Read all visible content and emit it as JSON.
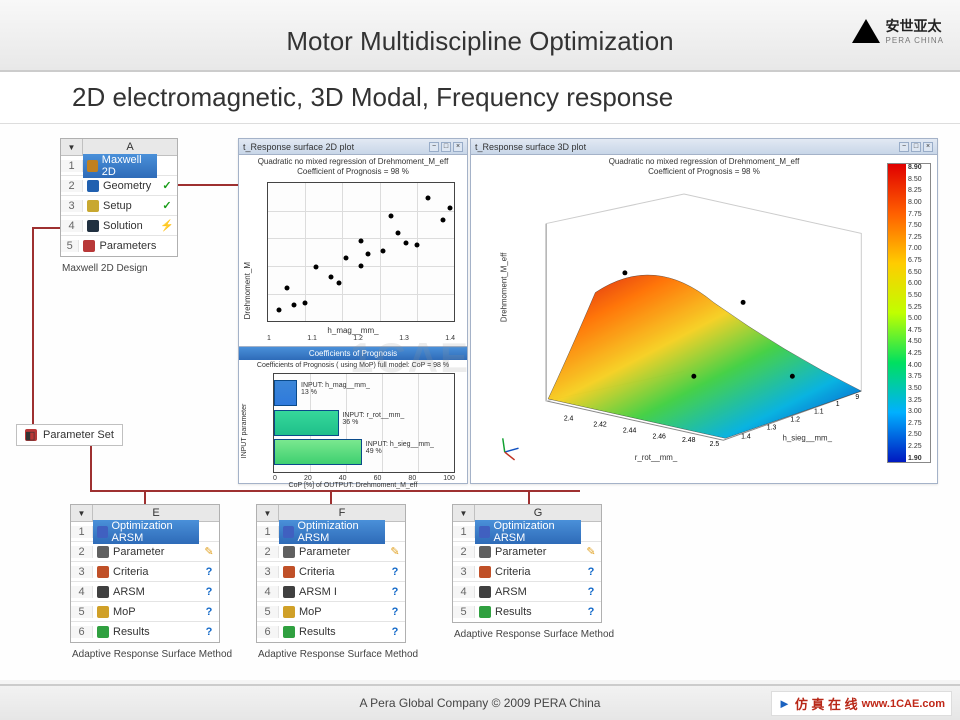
{
  "header": {
    "title": "Motor Multidiscipline Optimization",
    "logo_text": "安世亚太",
    "logo_sub": "PERA CHINA"
  },
  "subheader": "2D electromagnetic, 3D Modal, Frequency response",
  "tree_a": {
    "col": "A",
    "caption": "Maxwell 2D Design",
    "rows": [
      {
        "idx": "1",
        "label": "Maxwell 2D",
        "status": "",
        "icon_color": "#c08020",
        "selected": true
      },
      {
        "idx": "2",
        "label": "Geometry",
        "status": "✓",
        "icon_color": "#2060b0"
      },
      {
        "idx": "3",
        "label": "Setup",
        "status": "✓",
        "icon_color": "#c8a830"
      },
      {
        "idx": "4",
        "label": "Solution",
        "status": "⚡",
        "icon_color": "#203040"
      },
      {
        "idx": "5",
        "label": "Parameters",
        "status": "",
        "icon_color": "#b83838"
      }
    ]
  },
  "param_set": {
    "label": "Parameter Set",
    "icon_color": "#b83838"
  },
  "tree_e": {
    "col": "E",
    "caption": "Adaptive Response Surface Method",
    "rows": [
      {
        "idx": "1",
        "label": "Optimization ARSM",
        "status": "",
        "icon_color": "#4060c0",
        "selected": true
      },
      {
        "idx": "2",
        "label": "Parameter",
        "status": "✎",
        "icon_color": "#606060"
      },
      {
        "idx": "3",
        "label": "Criteria",
        "status": "?",
        "icon_color": "#c05028"
      },
      {
        "idx": "4",
        "label": "ARSM",
        "status": "?",
        "icon_color": "#404040"
      },
      {
        "idx": "5",
        "label": "MoP",
        "status": "?",
        "icon_color": "#d0a028"
      },
      {
        "idx": "6",
        "label": "Results",
        "status": "?",
        "icon_color": "#30a040"
      }
    ]
  },
  "tree_f": {
    "col": "F",
    "caption": "Adaptive Response Surface Method",
    "rows": [
      {
        "idx": "1",
        "label": "Optimization ARSM",
        "status": "",
        "icon_color": "#4060c0",
        "selected": true
      },
      {
        "idx": "2",
        "label": "Parameter",
        "status": "✎",
        "icon_color": "#606060"
      },
      {
        "idx": "3",
        "label": "Criteria",
        "status": "?",
        "icon_color": "#c05028"
      },
      {
        "idx": "4",
        "label": "ARSM  I",
        "status": "?",
        "icon_color": "#404040"
      },
      {
        "idx": "5",
        "label": "MoP",
        "status": "?",
        "icon_color": "#d0a028"
      },
      {
        "idx": "6",
        "label": "Results",
        "status": "?",
        "icon_color": "#30a040"
      }
    ]
  },
  "tree_g": {
    "col": "G",
    "caption": "Adaptive Response Surface Method",
    "rows": [
      {
        "idx": "1",
        "label": "Optimization ARSM",
        "status": "",
        "icon_color": "#4060c0",
        "selected": true
      },
      {
        "idx": "2",
        "label": "Parameter",
        "status": "✎",
        "icon_color": "#606060"
      },
      {
        "idx": "3",
        "label": "Criteria",
        "status": "?",
        "icon_color": "#c05028"
      },
      {
        "idx": "4",
        "label": "ARSM",
        "status": "?",
        "icon_color": "#404040"
      },
      {
        "idx": "5",
        "label": "Results",
        "status": "?",
        "icon_color": "#30a040"
      }
    ]
  },
  "scatter": {
    "win_title": "t_Response surface 2D plot",
    "title_line1": "Quadratic no mixed regression of Drehmoment_M_eff",
    "title_line2": "Coefficient of Prognosis = 98 %",
    "x_label": "h_mag__mm_",
    "y_label": "Drehmoment_M",
    "x_ticks": [
      "1",
      "1.1",
      "1.2",
      "1.3",
      "1.4"
    ],
    "xlim": [
      0.95,
      1.45
    ],
    "ylim": [
      4,
      14
    ],
    "points": [
      {
        "x": 0.98,
        "y": 4.8
      },
      {
        "x": 1.0,
        "y": 6.4
      },
      {
        "x": 1.02,
        "y": 5.2
      },
      {
        "x": 1.05,
        "y": 5.3
      },
      {
        "x": 1.08,
        "y": 7.9
      },
      {
        "x": 1.12,
        "y": 7.2
      },
      {
        "x": 1.14,
        "y": 6.8
      },
      {
        "x": 1.16,
        "y": 8.6
      },
      {
        "x": 1.2,
        "y": 8.0
      },
      {
        "x": 1.2,
        "y": 9.8
      },
      {
        "x": 1.22,
        "y": 8.9
      },
      {
        "x": 1.26,
        "y": 9.1
      },
      {
        "x": 1.28,
        "y": 11.6
      },
      {
        "x": 1.3,
        "y": 10.4
      },
      {
        "x": 1.32,
        "y": 9.7
      },
      {
        "x": 1.35,
        "y": 9.5
      },
      {
        "x": 1.38,
        "y": 12.9
      },
      {
        "x": 1.42,
        "y": 11.3
      },
      {
        "x": 1.44,
        "y": 12.2
      }
    ]
  },
  "barchart": {
    "header": "Coefficients of Prognosis",
    "subtitle": "Coefficients of Prognosis ( using MoP)   full model: CoP =  98 %",
    "y_label": "INPUT parameter",
    "x_label": "CoP [%] of OUTPUT: Drehmoment_M_eff",
    "x_ticks": [
      "0",
      "20",
      "40",
      "60",
      "80",
      "100"
    ],
    "bars": [
      {
        "label": "INPUT: h_mag__mm_",
        "value": 13,
        "vlabel": "13 %",
        "colors": [
          "#3b86d8",
          "#2f7adc"
        ]
      },
      {
        "label": "INPUT: r_rot__mm_",
        "value": 36,
        "vlabel": "36 %",
        "colors": [
          "#36d89a",
          "#1fbf8a"
        ]
      },
      {
        "label": "INPUT: h_sieg__mm_",
        "value": 49,
        "vlabel": "49 %",
        "colors": [
          "#7ae88f",
          "#3ed070"
        ]
      }
    ]
  },
  "surface": {
    "win_title": "t_Response surface 3D plot",
    "title_line1": "Quadratic no mixed regression of Drehmoment_M_eff",
    "title_line2": "Coefficient of Prognosis = 98 %",
    "x_label": "r_rot__mm_",
    "y_label": "h_sieg__mm_",
    "z_label": "Drehmoment_M_eff",
    "x_ticks": [
      "2.4",
      "2.42",
      "2.44",
      "2.46",
      "2.48",
      "2.5"
    ],
    "y_ticks": [
      "1.4",
      "1.3",
      "1.2",
      "1.1",
      "1",
      "9"
    ],
    "colorbar_max": "8.90",
    "colorbar_min": "1.90",
    "colorbar_ticks": [
      "8.90",
      "8.50",
      "8.25",
      "8.00",
      "7.75",
      "7.50",
      "7.25",
      "7.00",
      "6.75",
      "6.50",
      "6.00",
      "5.50",
      "5.25",
      "5.00",
      "4.75",
      "4.50",
      "4.25",
      "4.00",
      "3.75",
      "3.50",
      "3.25",
      "3.00",
      "2.75",
      "2.50",
      "2.25",
      "2.00"
    ]
  },
  "connectors": {
    "color": "#9e3030"
  },
  "footer": {
    "text": "A Pera Global Company © 2009 PERA China",
    "brand_cn": "仿 真 在 线",
    "brand_url": "www.1CAE.com"
  },
  "watermark": "1CAE.COM"
}
